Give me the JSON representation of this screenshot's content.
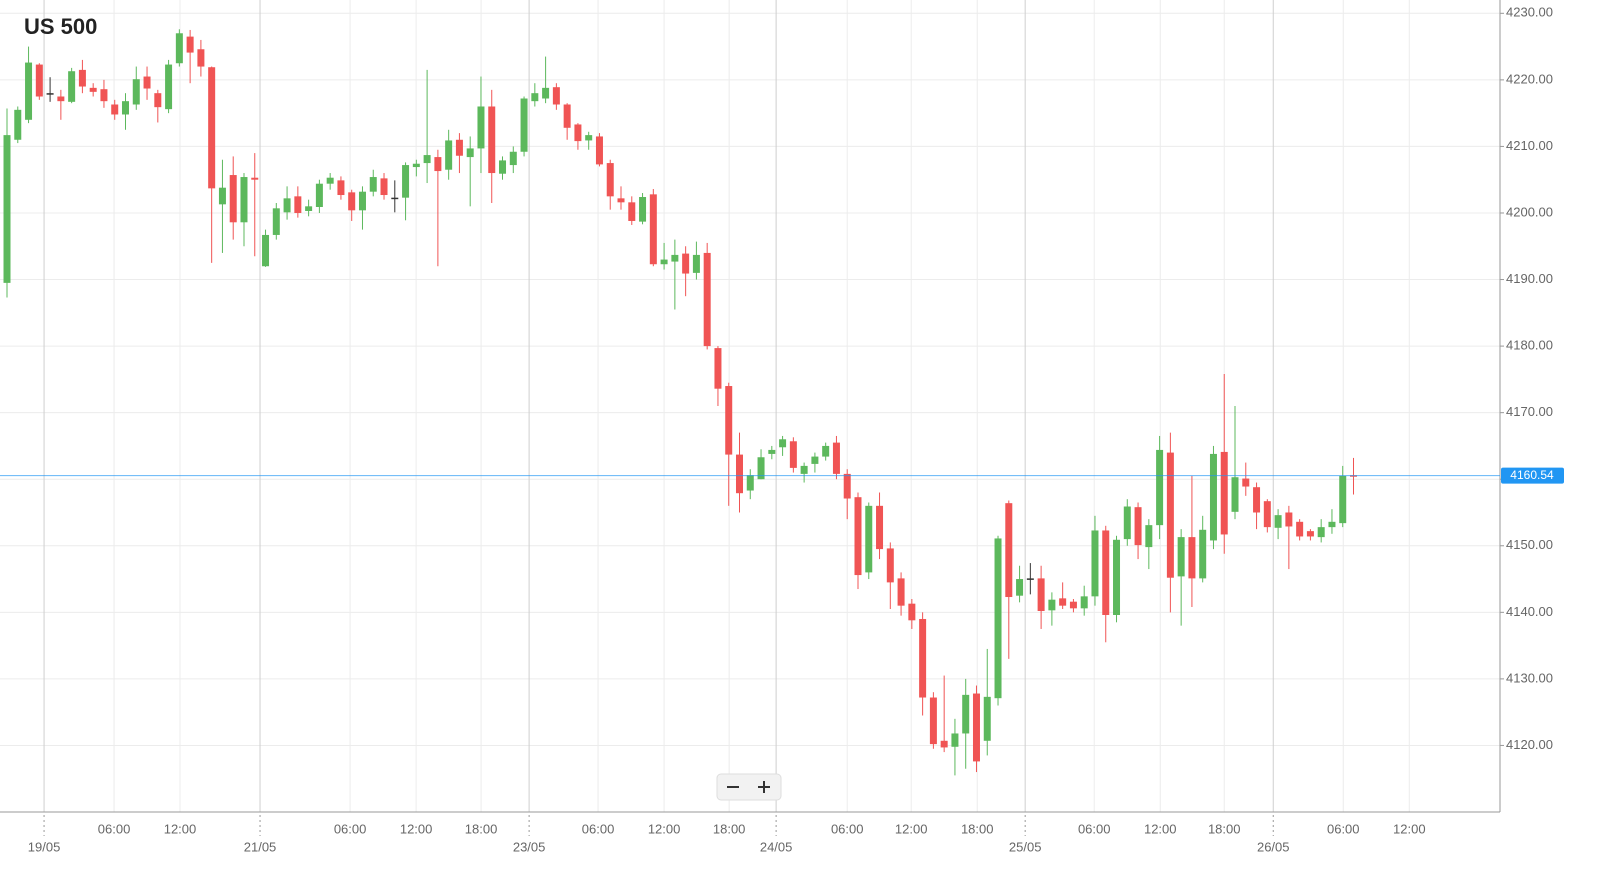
{
  "chart_data": {
    "type": "candlestick",
    "title": "US 500",
    "open": [
      4189.5,
      4211,
      4214,
      4222.3,
      4218,
      4217.5,
      4216.7,
      4221.5,
      4218.8,
      4218.6,
      4216.3,
      4214.8,
      4216.3,
      4220.5,
      4218,
      4215.6,
      4222.5,
      4226.5,
      4224.6,
      4221.9,
      4201.3,
      4205.7,
      4198.6,
      4205.3,
      4192,
      4196.7,
      4200.1,
      4202.5,
      4200.3,
      4200.9,
      4204.4,
      4204.9,
      4203.1,
      4200.4,
      4203.2,
      4205.2,
      4202.3,
      4202.3,
      4206.9,
      4207.5,
      4208.4,
      4206.5,
      4211,
      4208.4,
      4209.7,
      4216,
      4205.9,
      4207.2,
      4209.2,
      4216.8,
      4217.2,
      4218.9,
      4216.3,
      4213.3,
      4210.9,
      4211.5,
      4207.5,
      4202.2,
      4201.6,
      4198.7,
      4202.8,
      4192.3,
      4192.7,
      4193.9,
      4191,
      4194,
      4179.7,
      4174,
      4163.7,
      4158.3,
      4160,
      4163.8,
      4164.8,
      4165.7,
      4160.8,
      4162.3,
      4163.4,
      4165.5,
      4160.8,
      4157.3,
      4146,
      4156,
      4149.6,
      4145.1,
      4141.3,
      4139,
      4127.2,
      4120.7,
      4119.8,
      4121.8,
      4127.8,
      4120.7,
      4127.1,
      4156.4,
      4142.5,
      4145.1,
      4145.1,
      4140.3,
      4142.1,
      4141.6,
      4140.6,
      4142.4,
      4152.3,
      4139.6,
      4151,
      4155.8,
      4149.8,
      4153.1,
      4164,
      4145.4,
      4151.3,
      4145.1,
      4150.8,
      4164.1,
      4155.1,
      4160.1,
      4158.8,
      4156.7,
      4152.7,
      4155,
      4153.6,
      4152.2,
      4151.3,
      4152.8,
      4153.4,
      4160.6
    ],
    "high": [
      4215.7,
      4216,
      4225,
      4222.5,
      4220.4,
      4218.5,
      4221.8,
      4223,
      4219.5,
      4220,
      4217,
      4218,
      4222,
      4222,
      4218.5,
      4223,
      4227.6,
      4227.5,
      4226,
      4222,
      4208,
      4208.5,
      4206,
      4209,
      4197.5,
      4201.5,
      4204,
      4204,
      4202,
      4205,
      4206,
      4205.5,
      4203.5,
      4204,
      4206.5,
      4206,
      4204.9,
      4207.6,
      4208,
      4221.5,
      4209.5,
      4212.5,
      4212,
      4211.5,
      4220.5,
      4218.5,
      4208.5,
      4210,
      4217.5,
      4219.5,
      4223.5,
      4219.5,
      4216.5,
      4213.5,
      4212.2,
      4212,
      4208,
      4204,
      4202.5,
      4203,
      4203.6,
      4195.5,
      4196,
      4195,
      4195.7,
      4195.5,
      4180,
      4174.5,
      4167,
      4161.5,
      4164.5,
      4165,
      4166.5,
      4166.3,
      4162.5,
      4164,
      4165.5,
      4166.5,
      4161.5,
      4158,
      4156.5,
      4158,
      4150.5,
      4146,
      4142,
      4140,
      4128,
      4130.5,
      4124,
      4130,
      4129,
      4134.5,
      4151.5,
      4156.8,
      4147,
      4147.4,
      4147,
      4143,
      4144.5,
      4142,
      4144,
      4154.5,
      4153,
      4151.5,
      4157,
      4156.5,
      4154,
      4166.5,
      4167,
      4152.5,
      4160.5,
      4154.5,
      4165,
      4175.8,
      4171,
      4162.5,
      4159.5,
      4157,
      4155.5,
      4156,
      4154,
      4152.5,
      4154,
      4155.5,
      4162,
      4163.2
    ],
    "low": [
      4187.3,
      4210.5,
      4213.5,
      4217,
      4216.7,
      4214,
      4216.5,
      4218,
      4217.5,
      4215.8,
      4214,
      4212.5,
      4215.5,
      4217,
      4213.6,
      4215,
      4222,
      4219.5,
      4220.5,
      4192.5,
      4194,
      4196,
      4195,
      4193.5,
      4191.9,
      4196,
      4199,
      4199.3,
      4199.5,
      4200,
      4203.5,
      4202,
      4198.8,
      4197.5,
      4202.5,
      4202,
      4200.1,
      4198.9,
      4205.5,
      4204.5,
      4192,
      4205,
      4206,
      4201,
      4206,
      4201.5,
      4205,
      4206,
      4208.5,
      4216,
      4216.5,
      4215.5,
      4211,
      4209.5,
      4209.5,
      4207,
      4200.5,
      4200.5,
      4198.2,
      4198.3,
      4192,
      4191.5,
      4185.5,
      4187.5,
      4190,
      4179.5,
      4171,
      4156,
      4155,
      4157,
      4160,
      4163,
      4163.5,
      4161,
      4159.5,
      4161,
      4162.8,
      4160,
      4154,
      4143.5,
      4145,
      4148,
      4140.5,
      4139.5,
      4137.5,
      4124.5,
      4119.5,
      4119,
      4115.5,
      4116.5,
      4116,
      4118.5,
      4126,
      4133,
      4141.5,
      4142.7,
      4137.5,
      4138,
      4140.5,
      4140,
      4139.5,
      4141,
      4135.5,
      4138.5,
      4150,
      4148,
      4146.5,
      4151,
      4140,
      4138,
      4140.8,
      4144.5,
      4149.5,
      4148.8,
      4154,
      4157.5,
      4152.5,
      4152,
      4151,
      4146.5,
      4150.8,
      4150.8,
      4150.5,
      4151.8,
      4152.8,
      4157.7
    ],
    "close": [
      4211.7,
      4215.5,
      4222.6,
      4217.5,
      4218,
      4216.8,
      4221.3,
      4219,
      4218.2,
      4216.8,
      4214.8,
      4216.8,
      4220.1,
      4218.7,
      4215.9,
      4222.3,
      4227,
      4224.1,
      4222,
      4203.7,
      4203.8,
      4198.6,
      4205.4,
      4205,
      4196.7,
      4200.7,
      4202.2,
      4200,
      4201,
      4204.4,
      4205.3,
      4202.7,
      4200.4,
      4203.2,
      4205.4,
      4202.7,
      4202.3,
      4207.2,
      4207.4,
      4208.7,
      4206.3,
      4210.9,
      4208.6,
      4209.7,
      4216,
      4206,
      4207.9,
      4209.2,
      4217.2,
      4218,
      4218.8,
      4216.3,
      4212.8,
      4210.8,
      4211.7,
      4207.3,
      4202.5,
      4201.6,
      4198.8,
      4202.4,
      4192.3,
      4193,
      4193.7,
      4190.9,
      4193.7,
      4180,
      4173.6,
      4163.7,
      4157.9,
      4160.6,
      4163.3,
      4164.4,
      4166,
      4161.7,
      4162,
      4163.4,
      4165,
      4160.8,
      4157.1,
      4145.6,
      4156,
      4149.5,
      4144.5,
      4141,
      4138.8,
      4127.2,
      4120.2,
      4119.7,
      4121.8,
      4127.6,
      4117.6,
      4127.3,
      4151.1,
      4142.3,
      4145,
      4145.1,
      4140.2,
      4141.9,
      4141,
      4140.6,
      4142.4,
      4152.3,
      4139.6,
      4150.9,
      4155.9,
      4150.1,
      4153.1,
      4164.4,
      4145.2,
      4151.3,
      4145.1,
      4152.4,
      4163.8,
      4151.7,
      4160.3,
      4158.9,
      4155,
      4152.8,
      4154.6,
      4152.9,
      4151.4,
      4151.4,
      4152.8,
      4153.6,
      4160.5,
      4160.5
    ],
    "colors": {
      "up": "#5cb85c",
      "down": "#f05454",
      "flat": "#333333"
    },
    "ylim": [
      4110,
      4232
    ],
    "yticks": [
      {
        "value": 4120,
        "label": "4120.00"
      },
      {
        "value": 4130,
        "label": "4130.00"
      },
      {
        "value": 4140,
        "label": "4140.00"
      },
      {
        "value": 4150,
        "label": "4150.00"
      },
      {
        "value": 4160,
        "label": "4160.00"
      },
      {
        "value": 4170,
        "label": "4170.00"
      },
      {
        "value": 4180,
        "label": "4180.00"
      },
      {
        "value": 4190,
        "label": "4190.00"
      },
      {
        "value": 4200,
        "label": "4200.00"
      },
      {
        "value": 4210,
        "label": "4210.00"
      },
      {
        "value": 4220,
        "label": "4220.00"
      },
      {
        "value": 4230,
        "label": "4230.00"
      }
    ],
    "xlim": [
      -0.65,
      138.6
    ],
    "xticks": [
      {
        "value": 9.94,
        "label": "06:00"
      },
      {
        "value": 16.06,
        "label": "12:00"
      },
      {
        "value": 31.85,
        "label": "06:00"
      },
      {
        "value": 37.98,
        "label": "12:00"
      },
      {
        "value": 44.01,
        "label": "18:00"
      },
      {
        "value": 54.87,
        "label": "06:00"
      },
      {
        "value": 61.0,
        "label": "12:00"
      },
      {
        "value": 67.04,
        "label": "18:00"
      },
      {
        "value": 78.0,
        "label": "06:00"
      },
      {
        "value": 83.94,
        "label": "12:00"
      },
      {
        "value": 90.07,
        "label": "18:00"
      },
      {
        "value": 100.93,
        "label": "06:00"
      },
      {
        "value": 107.06,
        "label": "12:00"
      },
      {
        "value": 113.0,
        "label": "18:00"
      },
      {
        "value": 124.05,
        "label": "06:00"
      },
      {
        "value": 130.18,
        "label": "12:00"
      }
    ],
    "date_ticks": [
      {
        "value": 3.44,
        "label": "19/05"
      },
      {
        "value": 23.49,
        "label": "21/05"
      },
      {
        "value": 48.47,
        "label": "23/05"
      },
      {
        "value": 71.4,
        "label": "24/05"
      },
      {
        "value": 94.52,
        "label": "25/05"
      },
      {
        "value": 117.55,
        "label": "26/05"
      }
    ],
    "current_price": 4160.54,
    "current_price_color": "#2196f3",
    "grid": true
  }
}
